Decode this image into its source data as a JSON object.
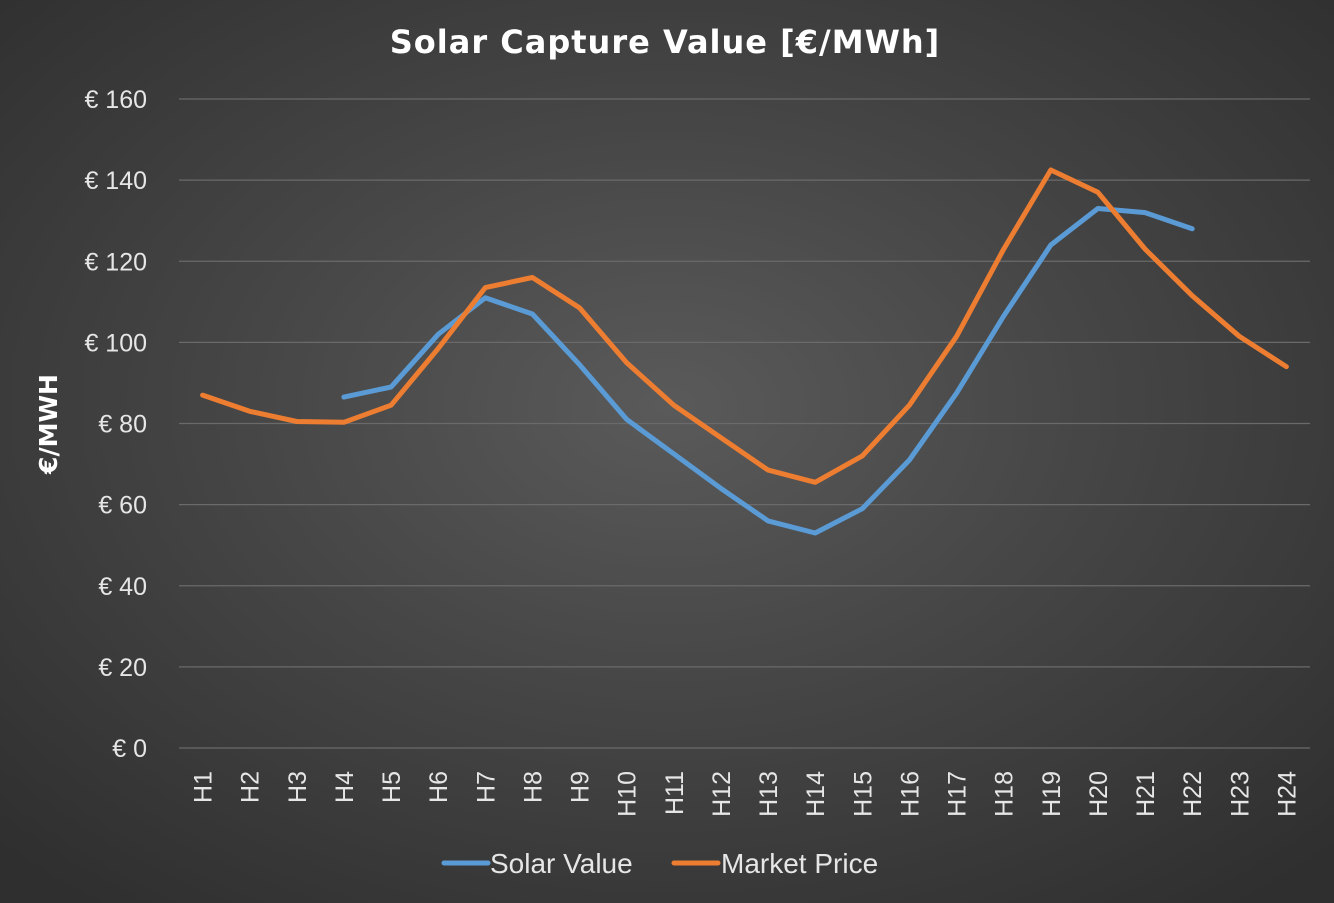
{
  "chart_data": {
    "type": "line",
    "title": "Solar Capture Value [€/MWh]",
    "xlabel": "",
    "ylabel": "€/MWH",
    "ylim": [
      0,
      160
    ],
    "ytick_step": 20,
    "ytick_prefix": "€ ",
    "grid": true,
    "legend_position": "bottom",
    "categories": [
      "H1",
      "H2",
      "H3",
      "H4",
      "H5",
      "H6",
      "H7",
      "H8",
      "H9",
      "H10",
      "H11",
      "H12",
      "H13",
      "H14",
      "H15",
      "H16",
      "H17",
      "H18",
      "H19",
      "H20",
      "H21",
      "H22",
      "H23",
      "H24"
    ],
    "series": [
      {
        "name": "Solar Value",
        "color": "#5b9bd5",
        "values": [
          null,
          null,
          null,
          86.5,
          89,
          102,
          111,
          107,
          94.5,
          81,
          72.5,
          64,
          56,
          53,
          59,
          71,
          87.5,
          106.5,
          124,
          133,
          132,
          128,
          null,
          null
        ]
      },
      {
        "name": "Market Price",
        "color": "#ed7d31",
        "values": [
          87,
          83,
          80.5,
          80.3,
          84.5,
          98.5,
          113.5,
          116,
          108.5,
          95,
          84.5,
          76.5,
          68.5,
          65.5,
          72,
          84.5,
          101.5,
          123,
          142.5,
          137,
          123,
          111.5,
          101.5,
          94
        ]
      }
    ]
  }
}
